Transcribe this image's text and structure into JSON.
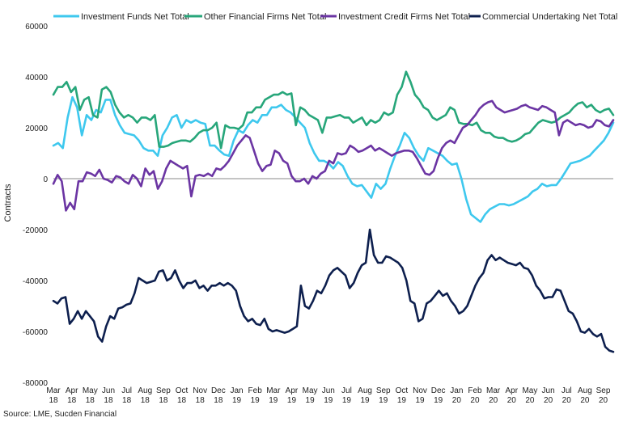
{
  "chart_data": {
    "type": "line",
    "title": "",
    "xlabel": "",
    "ylabel": "Contracts",
    "ylim": [
      -80000,
      60000
    ],
    "yticks": [
      60000,
      40000,
      20000,
      0,
      -20000,
      -40000,
      -60000,
      -80000
    ],
    "ytick_labels": [
      "60000",
      "40000",
      "20000",
      "0",
      "-20000",
      "-40000",
      "-60000",
      "-80000"
    ],
    "xtick_labels": [
      [
        "Mar",
        "18"
      ],
      [
        "Apr",
        "18"
      ],
      [
        "May",
        "18"
      ],
      [
        "Jun",
        "18"
      ],
      [
        "Jul",
        "18"
      ],
      [
        "Aug",
        "18"
      ],
      [
        "Sep",
        "18"
      ],
      [
        "Oct",
        "18"
      ],
      [
        "Nov",
        "18"
      ],
      [
        "Dec",
        "18"
      ],
      [
        "Jan",
        "19"
      ],
      [
        "Feb",
        "19"
      ],
      [
        "Mar",
        "19"
      ],
      [
        "Apr",
        "19"
      ],
      [
        "May",
        "19"
      ],
      [
        "Jun",
        "19"
      ],
      [
        "Jul",
        "19"
      ],
      [
        "Aug",
        "19"
      ],
      [
        "Sep",
        "19"
      ],
      [
        "Oct",
        "19"
      ],
      [
        "Nov",
        "19"
      ],
      [
        "Dec",
        "19"
      ],
      [
        "Jan",
        "20"
      ],
      [
        "Feb",
        "20"
      ],
      [
        "Mar",
        "20"
      ],
      [
        "Apr",
        "20"
      ],
      [
        "May",
        "20"
      ],
      [
        "Jun",
        "20"
      ],
      [
        "Jul",
        "20"
      ],
      [
        "Aug",
        "20"
      ],
      [
        "Sep",
        "20"
      ]
    ],
    "x_weeks_per_month": 4.35,
    "grid": false,
    "legend_position": "top",
    "source": "Source: LME, Sucden Financial",
    "series": [
      {
        "name": "Investment Funds Net Total",
        "color": "#3ec8ee",
        "values": [
          13000,
          14000,
          12000,
          24000,
          32000,
          28000,
          17000,
          25000,
          23000,
          27000,
          26000,
          31000,
          31000,
          25000,
          21000,
          18000,
          17500,
          17000,
          15000,
          12000,
          11000,
          11000,
          9000,
          17000,
          20000,
          24000,
          25000,
          20000,
          23000,
          22000,
          23000,
          22000,
          21500,
          13000,
          13000,
          11000,
          9500,
          9000,
          15000,
          19000,
          18000,
          21000,
          23000,
          22000,
          25000,
          25000,
          28000,
          28000,
          29000,
          27000,
          26000,
          24000,
          22000,
          20000,
          14000,
          10000,
          7000,
          7000,
          6000,
          4000,
          6500,
          5000,
          1000,
          -2000,
          -3000,
          -2500,
          -5000,
          -7500,
          -2000,
          -4000,
          -2000,
          4000,
          9000,
          13000,
          18000,
          16000,
          12000,
          9000,
          7000,
          12000,
          11000,
          10000,
          9000,
          7000,
          5500,
          6000,
          0,
          -8000,
          -14000,
          -15500,
          -17000,
          -14000,
          -12000,
          -11000,
          -10000,
          -10000,
          -10500,
          -10000,
          -9000,
          -8000,
          -7000,
          -5000,
          -4000,
          -2000,
          -3000,
          -2500,
          -2500,
          0,
          3000,
          6000,
          6500,
          7000,
          8000,
          9000,
          11000,
          13000,
          15000,
          18000,
          22000
        ]
      },
      {
        "name": "Other Financial Firms Net Total",
        "color": "#27a67a",
        "values": [
          33000,
          36000,
          36000,
          38000,
          34000,
          36000,
          27000,
          31000,
          32000,
          25000,
          24000,
          35000,
          36000,
          34000,
          29000,
          26000,
          24000,
          25000,
          24000,
          22000,
          24000,
          24000,
          23000,
          25000,
          12500,
          12500,
          13000,
          14000,
          14500,
          15000,
          15000,
          14500,
          16000,
          18000,
          19000,
          19000,
          20000,
          22000,
          12000,
          21000,
          20000,
          20000,
          19500,
          21000,
          26000,
          26000,
          28000,
          28000,
          31000,
          32000,
          33000,
          33000,
          34000,
          33000,
          33500,
          21000,
          28000,
          27000,
          25000,
          24000,
          23000,
          18000,
          24000,
          24000,
          24500,
          25000,
          24000,
          24000,
          22000,
          23000,
          24000,
          21000,
          23000,
          22000,
          23000,
          26000,
          25000,
          26000,
          33000,
          36000,
          42000,
          38000,
          33000,
          31000,
          28000,
          27000,
          24000,
          23000,
          24000,
          25000,
          28000,
          27000,
          22000,
          21500,
          21500,
          21000,
          22000,
          19000,
          18000,
          18000,
          16500,
          16000,
          16000,
          15000,
          14500,
          15000,
          16000,
          17500,
          18000,
          20000,
          22000,
          23000,
          22500,
          22000,
          22500,
          24000,
          25000,
          26000,
          28000,
          29500,
          30000,
          28000,
          29000,
          27000,
          26000,
          27000,
          27500,
          25000
        ]
      },
      {
        "name": "Investment Credit Firms Net Total",
        "color": "#6b35a3",
        "values": [
          -2000,
          1500,
          -1000,
          -12500,
          -9500,
          -12000,
          -1000,
          -1000,
          2500,
          2000,
          1000,
          3500,
          0,
          -500,
          -1500,
          1000,
          500,
          -1000,
          -2000,
          1500,
          0,
          -3000,
          4000,
          1500,
          3000,
          -4000,
          -1000,
          4000,
          7000,
          6000,
          5000,
          4000,
          5000,
          -7000,
          1000,
          1500,
          1000,
          2000,
          1000,
          4000,
          3500,
          5000,
          7000,
          10000,
          13000,
          15000,
          17000,
          16000,
          11000,
          6000,
          3000,
          5000,
          5500,
          11000,
          10000,
          7000,
          6000,
          1000,
          -1000,
          -1000,
          0,
          -2000,
          1000,
          0,
          2000,
          3000,
          7000,
          6000,
          10000,
          9500,
          10000,
          13000,
          12000,
          10500,
          11000,
          12000,
          13000,
          11000,
          12000,
          11000,
          10000,
          9000,
          10000,
          10500,
          11000,
          11000,
          10500,
          8000,
          5000,
          2000,
          1500,
          3000,
          8000,
          12000,
          14000,
          15000,
          14000,
          17000,
          20000,
          21000,
          23000,
          25000,
          27500,
          29000,
          30000,
          30500,
          28000,
          27000,
          26000,
          26500,
          27000,
          27500,
          28500,
          29000,
          28000,
          27500,
          27000,
          28500,
          28000,
          27000,
          26000,
          17000,
          22000,
          23000,
          22000,
          21000,
          21500,
          21000,
          20000,
          20500,
          23000,
          22500,
          21000,
          20500,
          23000
        ]
      },
      {
        "name": "Commercial Undertaking Net Total",
        "color": "#0d1f4e",
        "values": [
          -48000,
          -49000,
          -47000,
          -46500,
          -57000,
          -55000,
          -52000,
          -55000,
          -52000,
          -54000,
          -56000,
          -62000,
          -64000,
          -58000,
          -54000,
          -55000,
          -51000,
          -50500,
          -49500,
          -49000,
          -45000,
          -39000,
          -40000,
          -41000,
          -40500,
          -40000,
          -36500,
          -36000,
          -40000,
          -39000,
          -36000,
          -40000,
          -43000,
          -41000,
          -41000,
          -40000,
          -43000,
          -42000,
          -44000,
          -42000,
          -42000,
          -41000,
          -42000,
          -41000,
          -42000,
          -44000,
          -50000,
          -54000,
          -56000,
          -55000,
          -57000,
          -57500,
          -55000,
          -59000,
          -60000,
          -59500,
          -60000,
          -60500,
          -60000,
          -59000,
          -58000,
          -42000,
          -50000,
          -51000,
          -48000,
          -44000,
          -45000,
          -42000,
          -38000,
          -36000,
          -35000,
          -36500,
          -38000,
          -43000,
          -41000,
          -37000,
          -34000,
          -33000,
          -20000,
          -30000,
          -33000,
          -33000,
          -30500,
          -31000,
          -32000,
          -33000,
          -35000,
          -40000,
          -48000,
          -49000,
          -56000,
          -55000,
          -49000,
          -48000,
          -46000,
          -44000,
          -46000,
          -45000,
          -48000,
          -50000,
          -53000,
          -52000,
          -50000,
          -46000,
          -42000,
          -39000,
          -37000,
          -32000,
          -30000,
          -32000,
          -31000,
          -32000,
          -33000,
          -33500,
          -34000,
          -33000,
          -35000,
          -35500,
          -38000,
          -42000,
          -44000,
          -47000,
          -46500,
          -46500,
          -43500,
          -44000,
          -48000,
          -52000,
          -53000,
          -56000,
          -60000,
          -60500,
          -59000,
          -61000,
          -62000,
          -61000,
          -66000,
          -67500,
          -68000
        ]
      }
    ]
  }
}
